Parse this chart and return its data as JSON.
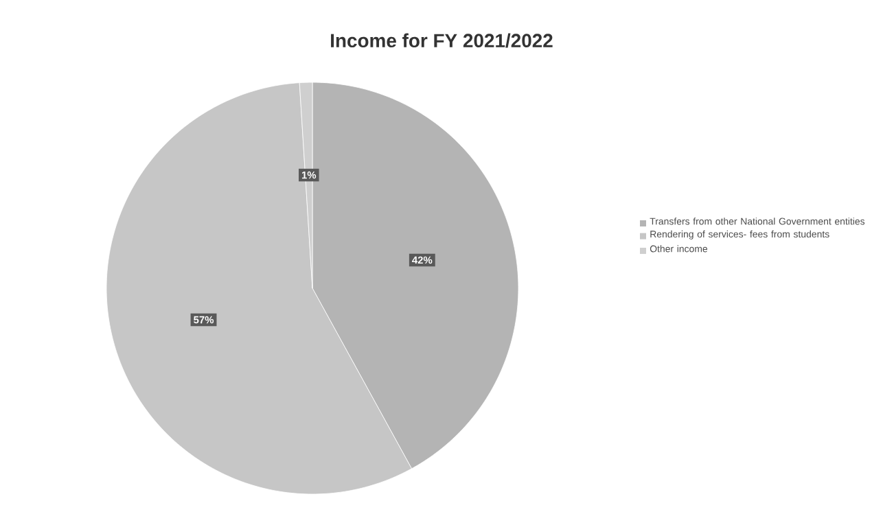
{
  "chart_data": {
    "type": "pie",
    "title": "Income for FY 2021/2022",
    "categories": [
      "Transfers from other National Government entities",
      "Rendering of services- fees from students",
      "Other income"
    ],
    "values": [
      42,
      57,
      1
    ],
    "colors": [
      "#b4b4b4",
      "#c6c6c6",
      "#cfcfcf"
    ],
    "value_labels": [
      "42%",
      "57%",
      "1%"
    ],
    "legend": "right"
  }
}
